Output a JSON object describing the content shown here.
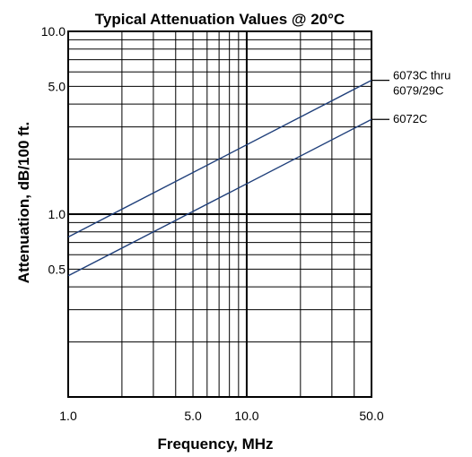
{
  "chart_data": {
    "type": "line",
    "title": "Typical Attenuation Values @ 20°C",
    "xlabel": "Frequency, MHz",
    "ylabel": "Attenuation, dB/100 ft.",
    "x_scale": "log",
    "y_scale": "log",
    "xlim": [
      1.0,
      50.0
    ],
    "ylim": [
      0.1,
      10.0
    ],
    "x_ticks": [
      1.0,
      5.0,
      10.0,
      50.0
    ],
    "x_tick_labels": [
      "1.0",
      "5.0",
      "10.0",
      "50.0"
    ],
    "y_ticks": [
      0.5,
      1.0,
      5.0,
      10.0
    ],
    "y_tick_labels": [
      "0.5",
      "1.0",
      "5.0",
      "10.0"
    ],
    "grid": true,
    "line_color": "#1f3f7a",
    "series": [
      {
        "name": "6073C thru 6079/29C",
        "label_lines": [
          "6073C thru",
          "6079/29C"
        ],
        "x": [
          1.0,
          50.0
        ],
        "y": [
          0.75,
          5.4
        ]
      },
      {
        "name": "6072C",
        "label_lines": [
          "6072C"
        ],
        "x": [
          1.0,
          50.0
        ],
        "y": [
          0.46,
          3.3
        ]
      }
    ]
  }
}
